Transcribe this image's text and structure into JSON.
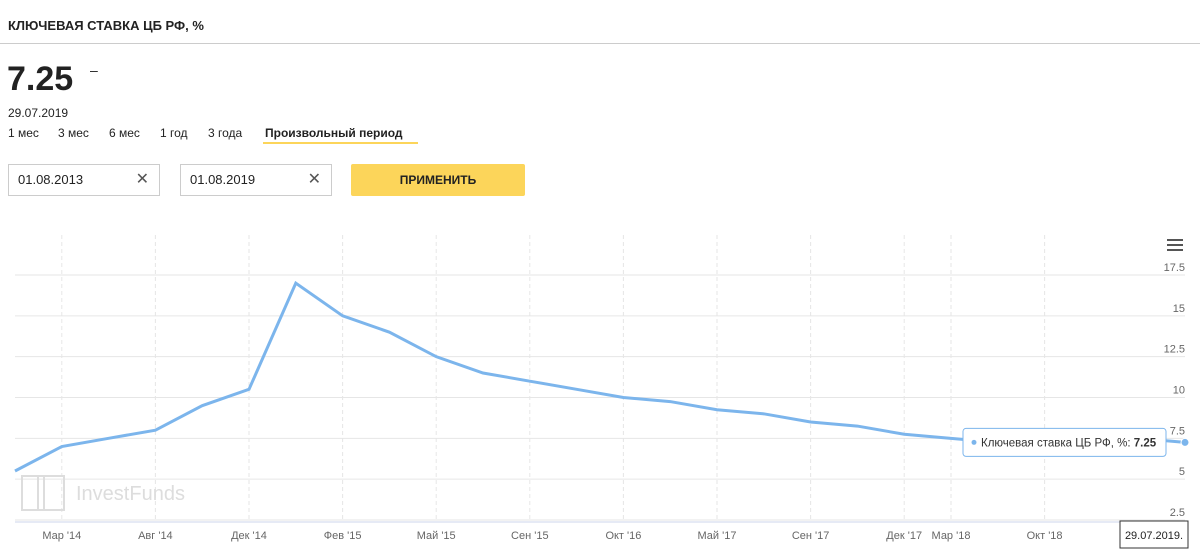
{
  "header": {
    "title": "КЛЮЧЕВАЯ СТАВКА ЦБ РФ, %",
    "change": "–",
    "date": "29.07.2019"
  },
  "tabs": [
    "1 мес",
    "3 мес",
    "6 мес",
    "1 год",
    "3 года",
    "Произвольный период"
  ],
  "inputs": [
    "01.08.2013",
    "01.08.2019"
  ],
  "button": "ПРИМЕНИТЬ",
  "chart_data": {
    "type": "line",
    "categories": [
      null,
      "Мар '14",
      null,
      "Авг '14",
      null,
      "Дек '14",
      null,
      "Фев '15",
      null,
      "Май '15",
      null,
      "Сен '15",
      null,
      "Окт '16",
      null,
      "Май '17",
      null,
      "Сен '17",
      null,
      "Дек '17",
      "Мар '18",
      null,
      "Окт '18",
      null,
      null,
      null
    ],
    "series": [
      {
        "name": "Ключевая ставка ЦБ РФ, %",
        "color": "#7cb5ec",
        "values": [
          5.5,
          7,
          7.5,
          8,
          9.5,
          10.5,
          17,
          15,
          14,
          12.5,
          11.5,
          11,
          10.5,
          10,
          9.75,
          9.25,
          9,
          8.5,
          8.25,
          7.75,
          7.5,
          7.25,
          7.5,
          7.75,
          7.5,
          7.25
        ]
      }
    ],
    "ylim": [
      2.5,
      17.5
    ],
    "yticks": [
      2.5,
      5,
      7.5,
      10,
      12.5,
      15,
      17.5
    ],
    "grid": true,
    "watermark": "InvestFunds",
    "tooltip_date": "29.07.2019."
  }
}
